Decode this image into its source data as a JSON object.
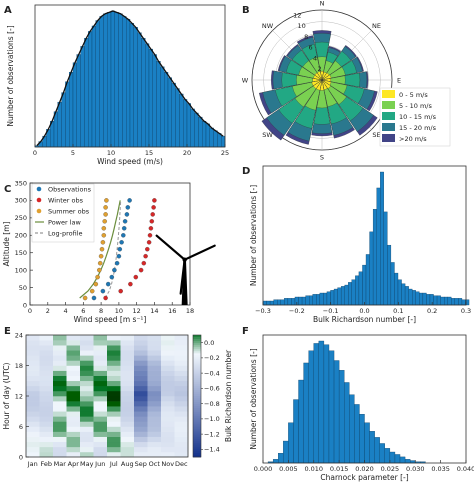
{
  "chart_data": [
    {
      "panel": "A",
      "type": "bar",
      "xlabel": "Wind speed (m/s)",
      "ylabel": "Number of observations [-]",
      "xticks": [
        "0",
        "5",
        "10",
        "15",
        "20",
        "25"
      ],
      "xlim": [
        0,
        25
      ],
      "ylim": [
        0,
        1.0
      ],
      "bin_width": 0.5,
      "values": [
        0.01,
        0.04,
        0.08,
        0.13,
        0.19,
        0.26,
        0.33,
        0.4,
        0.48,
        0.55,
        0.62,
        0.68,
        0.74,
        0.8,
        0.85,
        0.89,
        0.93,
        0.96,
        0.98,
        0.99,
        1.0,
        0.99,
        0.98,
        0.96,
        0.94,
        0.91,
        0.88,
        0.84,
        0.8,
        0.76,
        0.72,
        0.68,
        0.63,
        0.59,
        0.55,
        0.51,
        0.47,
        0.43,
        0.39,
        0.35,
        0.32,
        0.28,
        0.25,
        0.22,
        0.19,
        0.17,
        0.14,
        0.12,
        0.1,
        0.08
      ],
      "fit_line": "weibull"
    },
    {
      "panel": "B",
      "type": "windrose",
      "directions": [
        "N",
        "NE",
        "E",
        "SE",
        "S",
        "SW",
        "W",
        "NW"
      ],
      "radial_ticks": [
        "2",
        "4",
        "6",
        "8",
        "10",
        "12"
      ],
      "legend": [
        "0 - 5 m/s",
        "5 - 10 m/s",
        "10 - 15 m/s",
        "15 - 20 m/s",
        ">20 m/s"
      ],
      "colors": [
        "#fde725",
        "#7ad151",
        "#22a884",
        "#2a788e",
        "#414487"
      ],
      "sector_frequencies": [
        [
          1.5,
          2.5,
          2.5,
          1.5,
          0.5
        ],
        [
          1.4,
          2.0,
          1.5,
          0.8,
          0.2
        ],
        [
          1.5,
          2.5,
          2.0,
          1.0,
          0.2
        ],
        [
          1.6,
          2.5,
          2.0,
          1.0,
          0.2
        ],
        [
          1.5,
          2.5,
          2.5,
          1.2,
          0.2
        ],
        [
          1.6,
          2.8,
          3.0,
          1.8,
          0.5
        ],
        [
          1.8,
          3.3,
          3.4,
          2.2,
          0.8
        ],
        [
          1.7,
          3.0,
          3.0,
          2.0,
          0.5
        ],
        [
          1.8,
          3.0,
          2.8,
          1.6,
          0.4
        ],
        [
          1.8,
          3.5,
          3.2,
          2.2,
          0.6
        ],
        [
          1.8,
          3.8,
          3.4,
          2.5,
          1.0
        ],
        [
          1.8,
          3.4,
          3.0,
          2.2,
          0.6
        ],
        [
          1.6,
          2.8,
          2.5,
          1.5,
          0.3
        ],
        [
          1.5,
          2.6,
          2.2,
          1.2,
          0.2
        ],
        [
          1.5,
          2.5,
          2.2,
          1.0,
          0.2
        ],
        [
          1.5,
          2.5,
          2.3,
          1.2,
          0.3
        ]
      ]
    },
    {
      "panel": "C",
      "type": "scatter",
      "xlabel": "Wind speed [m s⁻¹]",
      "ylabel": "Altitude [m]",
      "xlim": [
        0,
        18
      ],
      "ylim": [
        0,
        350
      ],
      "xticks": [
        "0",
        "2",
        "4",
        "6",
        "8",
        "10",
        "12",
        "14",
        "16",
        "18"
      ],
      "yticks": [
        "0",
        "50",
        "100",
        "150",
        "200",
        "250",
        "300",
        "350"
      ],
      "legend": [
        "Observations",
        "Winter obs",
        "Summer obs",
        "Power law",
        "Log-profile"
      ],
      "colors": [
        "#1f77b4",
        "#d62728",
        "#e0a030",
        "#6b8e3d",
        "#999999"
      ],
      "altitudes": [
        20,
        40,
        60,
        80,
        100,
        120,
        140,
        160,
        180,
        200,
        220,
        240,
        260,
        280,
        300
      ],
      "series": [
        {
          "name": "Observations",
          "values": [
            7.2,
            8.2,
            8.8,
            9.2,
            9.5,
            9.8,
            10.0,
            10.1,
            10.3,
            10.5,
            10.6,
            10.7,
            10.9,
            11.0,
            11.2
          ]
        },
        {
          "name": "Winter obs",
          "values": [
            8.5,
            10.2,
            11.3,
            11.9,
            12.5,
            12.8,
            13.0,
            13.2,
            13.4,
            13.5,
            13.6,
            13.7,
            13.8,
            13.9,
            14.0
          ]
        },
        {
          "name": "Summer obs",
          "values": [
            6.2,
            7.0,
            7.4,
            7.6,
            7.8,
            7.9,
            8.0,
            8.1,
            8.2,
            8.3,
            8.3,
            8.4,
            8.5,
            8.5,
            8.6
          ]
        }
      ]
    },
    {
      "panel": "D",
      "type": "bar",
      "xlabel": "Bulk Richardson number [-]",
      "ylabel": "Number of observations [-]",
      "xlim": [
        -0.3,
        0.3
      ],
      "xticks": [
        "−0.3",
        "−0.2",
        "−0.1",
        "0.0",
        "0.1",
        "0.2",
        "0.3"
      ],
      "bin_width": 0.0105,
      "values": [
        0.03,
        0.03,
        0.03,
        0.04,
        0.04,
        0.04,
        0.05,
        0.05,
        0.05,
        0.06,
        0.06,
        0.06,
        0.07,
        0.07,
        0.08,
        0.08,
        0.09,
        0.09,
        0.1,
        0.11,
        0.12,
        0.13,
        0.14,
        0.15,
        0.17,
        0.19,
        0.22,
        0.25,
        0.3,
        0.38,
        0.55,
        0.72,
        0.88,
        1.0,
        0.7,
        0.45,
        0.32,
        0.24,
        0.19,
        0.16,
        0.14,
        0.12,
        0.11,
        0.1,
        0.09,
        0.09,
        0.08,
        0.08,
        0.07,
        0.07,
        0.06,
        0.06,
        0.06,
        0.05,
        0.05,
        0.05,
        0.04,
        0.04
      ]
    },
    {
      "panel": "E",
      "type": "heatmap",
      "ylabel": "Hour of day (UTC)",
      "colorbar_label": "Bulk Richardson number",
      "colorbar_ticks": [
        "0.0",
        "−0.2",
        "−0.4",
        "−0.6",
        "−0.8",
        "−1.0",
        "−1.2",
        "−1.4"
      ],
      "colorbar_range": [
        -1.5,
        0.1
      ],
      "months": [
        "Jan",
        "Feb",
        "Mar",
        "Apr",
        "May",
        "Jun",
        "Jul",
        "Aug",
        "Sep",
        "Oct",
        "Nov",
        "Dec"
      ],
      "yticks": [
        "0",
        "6",
        "12",
        "18",
        "24"
      ],
      "rows": 24
    },
    {
      "panel": "F",
      "type": "bar",
      "xlabel": "Charnock parameter [-]",
      "ylabel": "Number of observations [-]",
      "xlim": [
        0.0,
        0.04
      ],
      "xticks": [
        "0.000",
        "0.005",
        "0.010",
        "0.015",
        "0.020",
        "0.025",
        "0.030",
        "0.035",
        "0.040"
      ],
      "bin_width": 0.001,
      "values": [
        0.0,
        0.01,
        0.03,
        0.08,
        0.18,
        0.33,
        0.52,
        0.68,
        0.82,
        0.92,
        0.98,
        1.0,
        0.97,
        0.92,
        0.84,
        0.76,
        0.66,
        0.56,
        0.48,
        0.4,
        0.33,
        0.26,
        0.21,
        0.16,
        0.12,
        0.09,
        0.07,
        0.05,
        0.03,
        0.02,
        0.01,
        0.01,
        0.0,
        0.0,
        0.0,
        0.0,
        0.0,
        0.0,
        0.0,
        0.0
      ]
    }
  ],
  "panels": {
    "a": {
      "letter": "A"
    },
    "b": {
      "letter": "B"
    },
    "c": {
      "letter": "C"
    },
    "d": {
      "letter": "D"
    },
    "e": {
      "letter": "E"
    },
    "f": {
      "letter": "F"
    }
  }
}
